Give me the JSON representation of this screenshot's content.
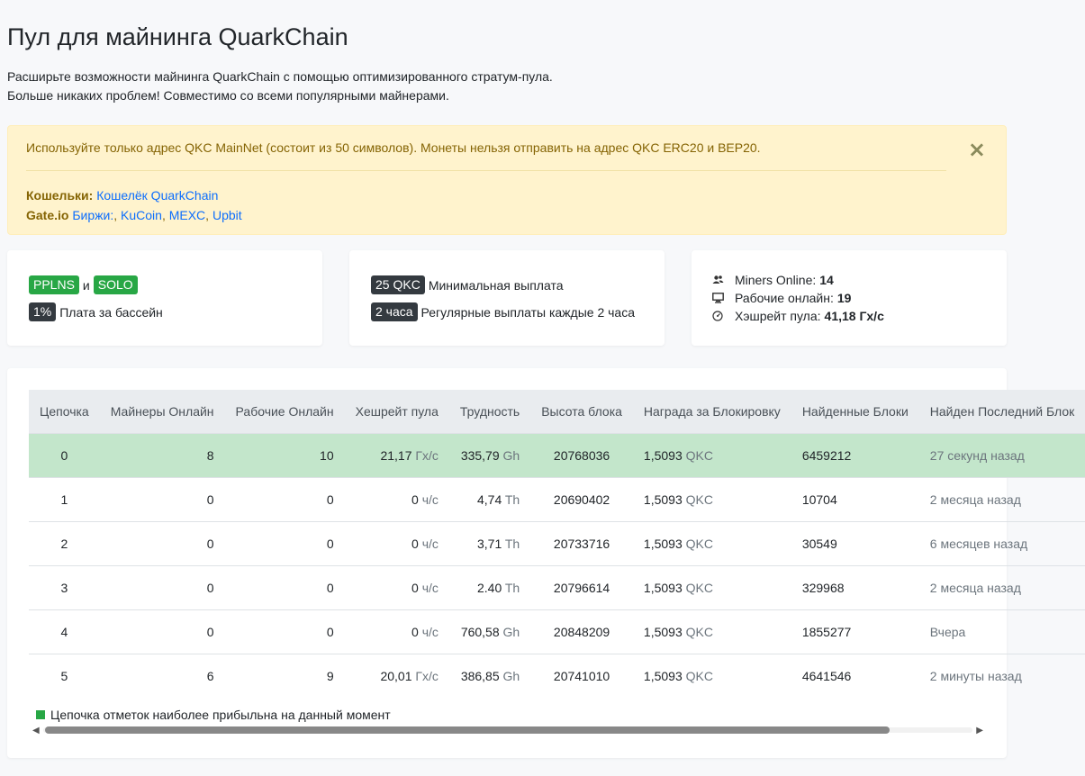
{
  "header": {
    "title": "Пул для майнинга QuarkChain",
    "lead_line1": "Расширьте возможности майнинга QuarkChain с помощью оптимизированного стратум-пула.",
    "lead_line2": "Больше никаких проблем! Совместимо со всеми популярными майнерами."
  },
  "alert": {
    "message": "Используйте только адрес QKC MainNet (состоит из 50 символов). Монеты нельзя отправить на адрес QKC ERC20 и BEP20.",
    "close": "×",
    "wallets_label": "Кошельки:",
    "wallets_link": "Кошелёк QuarkChain",
    "exchange_label": "Gate.io",
    "exchange_links_prefix": "Биржи:",
    "exchange_sep": ", ",
    "exchange_links": [
      "KuCoin",
      "MEXC",
      "Upbit"
    ]
  },
  "cards": {
    "schemes": {
      "pplns": "PPLNS",
      "and": "и",
      "solo": "SOLO",
      "fee_badge": "1%",
      "fee_text": "Плата за бассейн"
    },
    "payouts": {
      "min_badge": "25 QKC",
      "min_text": "Минимальная выплата",
      "interval_badge": "2 часа",
      "interval_text": "Регулярные выплаты каждые 2 часа"
    },
    "stats": {
      "miners_label": "Miners Online:",
      "miners_value": "14",
      "workers_label": "Рабочие онлайн:",
      "workers_value": "19",
      "hashrate_label": "Хэшрейт пула:",
      "hashrate_value": "41,18 Гх/с"
    }
  },
  "table": {
    "headers": [
      "Цепочка",
      "Майнеры Онлайн",
      "Рабочие Онлайн",
      "Хешрейт пула",
      "Трудность",
      "Высота блока",
      "Награда за Блокировку",
      "Найденные Блоки",
      "Найден Последний Блок"
    ],
    "rows": [
      {
        "chain": "0",
        "miners": "8",
        "workers": "10",
        "hashrate": "21,17",
        "hr_unit": "Гх/с",
        "diff": "335,79",
        "diff_unit": "Gh",
        "height": "20768036",
        "reward": "1,5093",
        "reward_unit": "QKC",
        "found": "6459212",
        "last": "27 секунд назад",
        "active": true
      },
      {
        "chain": "1",
        "miners": "0",
        "workers": "0",
        "hashrate": "0",
        "hr_unit": "ч/с",
        "diff": "4,74",
        "diff_unit": "Th",
        "height": "20690402",
        "reward": "1,5093",
        "reward_unit": "QKC",
        "found": "10704",
        "last": "2 месяца назад",
        "active": false
      },
      {
        "chain": "2",
        "miners": "0",
        "workers": "0",
        "hashrate": "0",
        "hr_unit": "ч/с",
        "diff": "3,71",
        "diff_unit": "Th",
        "height": "20733716",
        "reward": "1,5093",
        "reward_unit": "QKC",
        "found": "30549",
        "last": "6 месяцев назад",
        "active": false
      },
      {
        "chain": "3",
        "miners": "0",
        "workers": "0",
        "hashrate": "0",
        "hr_unit": "ч/с",
        "diff": "2.40",
        "diff_unit": "Th",
        "height": "20796614",
        "reward": "1,5093",
        "reward_unit": "QKC",
        "found": "329968",
        "last": "2 месяца назад",
        "active": false
      },
      {
        "chain": "4",
        "miners": "0",
        "workers": "0",
        "hashrate": "0",
        "hr_unit": "ч/с",
        "diff": "760,58",
        "diff_unit": "Gh",
        "height": "20848209",
        "reward": "1,5093",
        "reward_unit": "QKC",
        "found": "1855277",
        "last": "Вчера",
        "active": false
      },
      {
        "chain": "5",
        "miners": "6",
        "workers": "9",
        "hashrate": "20,01",
        "hr_unit": "Гх/с",
        "diff": "386,85",
        "diff_unit": "Gh",
        "height": "20741010",
        "reward": "1,5093",
        "reward_unit": "QKC",
        "found": "4641546",
        "last": "2 минуты назад",
        "active": false
      }
    ],
    "legend": "Цепочка отметок наиболее прибыльна на данный момент"
  },
  "colors": {
    "alert_bg": "#fff3cd",
    "alert_text": "#856404",
    "badge_green": "#28a745",
    "badge_dark": "#343a40",
    "active_row": "#c3e6cb",
    "link": "#0d6efd"
  }
}
